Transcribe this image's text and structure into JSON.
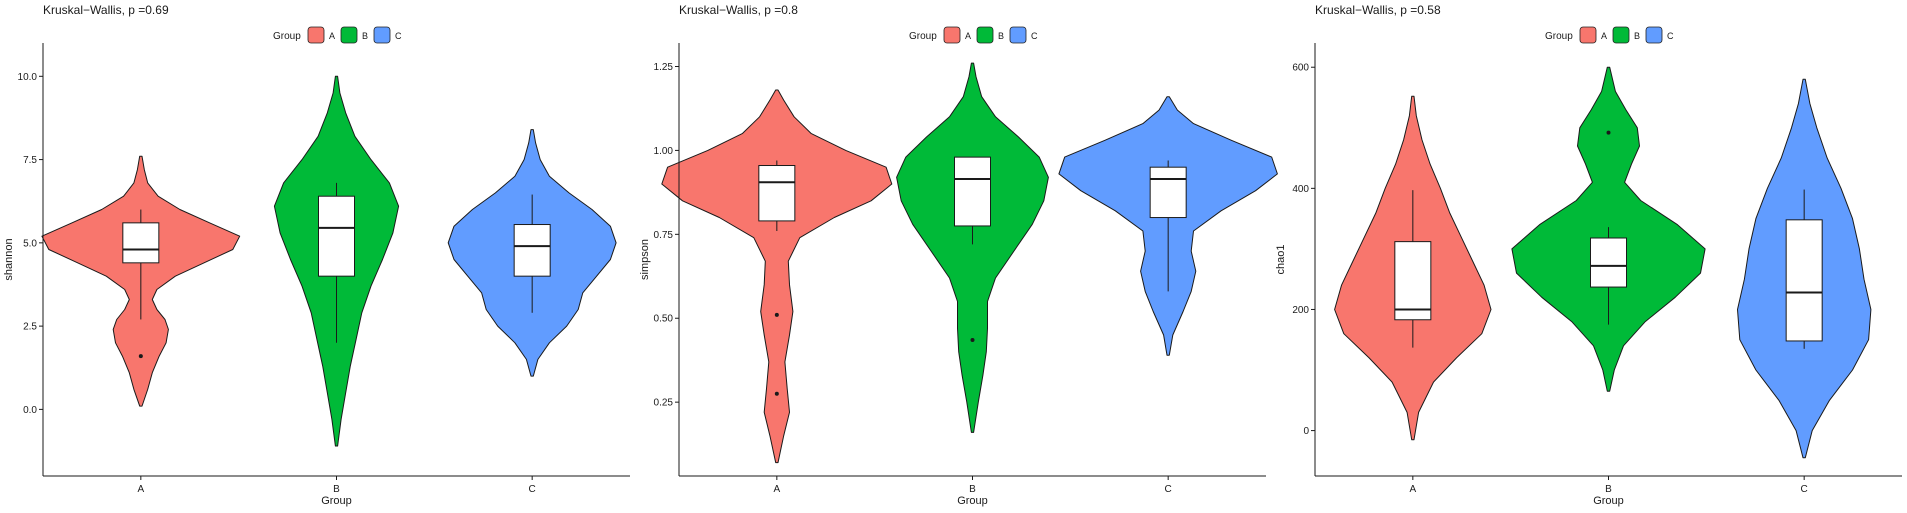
{
  "legend": {
    "title": "Group",
    "items": [
      {
        "label": "A",
        "color": "#F8766D"
      },
      {
        "label": "B",
        "color": "#00BA38"
      },
      {
        "label": "C",
        "color": "#619CFF"
      }
    ]
  },
  "chart_data": [
    {
      "type": "violin",
      "title": "Kruskal−Wallis, p =0.69",
      "xlabel": "Group",
      "ylabel": "shannon",
      "categories": [
        "A",
        "B",
        "C"
      ],
      "ylim": [
        -2.0,
        11.0
      ],
      "yticks": [
        0.0,
        2.5,
        5.0,
        7.5,
        10.0
      ],
      "ytick_labels": [
        "0.0",
        "2.5",
        "5.0",
        "7.5",
        "10.0"
      ],
      "series": [
        {
          "group": "A",
          "color": "#F8766D",
          "violin_range": [
            0.1,
            7.6
          ],
          "box": {
            "lower_whisker": 2.7,
            "q1": 4.4,
            "median": 4.8,
            "q3": 5.6,
            "upper_whisker": 6.0
          },
          "outliers": [
            1.6
          ],
          "density": [
            [
              0.1,
              0.01
            ],
            [
              0.6,
              0.06
            ],
            [
              1.1,
              0.1
            ],
            [
              1.6,
              0.16
            ],
            [
              2.0,
              0.22
            ],
            [
              2.4,
              0.24
            ],
            [
              2.7,
              0.21
            ],
            [
              3.0,
              0.14
            ],
            [
              3.3,
              0.1
            ],
            [
              3.6,
              0.14
            ],
            [
              4.0,
              0.3
            ],
            [
              4.4,
              0.55
            ],
            [
              4.8,
              0.8
            ],
            [
              5.2,
              0.86
            ],
            [
              5.6,
              0.6
            ],
            [
              6.0,
              0.34
            ],
            [
              6.4,
              0.15
            ],
            [
              6.8,
              0.06
            ],
            [
              7.2,
              0.03
            ],
            [
              7.6,
              0.01
            ]
          ]
        },
        {
          "group": "B",
          "color": "#00BA38",
          "violin_range": [
            -1.1,
            10.0
          ],
          "box": {
            "lower_whisker": 2.0,
            "q1": 4.0,
            "median": 5.45,
            "q3": 6.4,
            "upper_whisker": 6.8
          },
          "outliers": [],
          "density": [
            [
              -1.1,
              0.01
            ],
            [
              -0.3,
              0.04
            ],
            [
              0.5,
              0.08
            ],
            [
              1.3,
              0.12
            ],
            [
              2.1,
              0.17
            ],
            [
              2.9,
              0.22
            ],
            [
              3.7,
              0.3
            ],
            [
              4.5,
              0.4
            ],
            [
              5.3,
              0.49
            ],
            [
              6.1,
              0.54
            ],
            [
              6.8,
              0.46
            ],
            [
              7.5,
              0.3
            ],
            [
              8.2,
              0.16
            ],
            [
              8.9,
              0.08
            ],
            [
              9.5,
              0.03
            ],
            [
              10.0,
              0.01
            ]
          ]
        },
        {
          "group": "C",
          "color": "#619CFF",
          "violin_range": [
            1.0,
            8.4
          ],
          "box": {
            "lower_whisker": 2.9,
            "q1": 4.0,
            "median": 4.9,
            "q3": 5.55,
            "upper_whisker": 6.45
          },
          "outliers": [],
          "density": [
            [
              1.0,
              0.01
            ],
            [
              1.5,
              0.05
            ],
            [
              2.0,
              0.15
            ],
            [
              2.5,
              0.3
            ],
            [
              3.0,
              0.4
            ],
            [
              3.5,
              0.44
            ],
            [
              4.0,
              0.56
            ],
            [
              4.5,
              0.68
            ],
            [
              5.0,
              0.73
            ],
            [
              5.5,
              0.68
            ],
            [
              6.0,
              0.52
            ],
            [
              6.5,
              0.32
            ],
            [
              7.0,
              0.15
            ],
            [
              7.5,
              0.07
            ],
            [
              8.0,
              0.03
            ],
            [
              8.4,
              0.01
            ]
          ]
        }
      ]
    },
    {
      "type": "violin",
      "title": "Kruskal−Wallis, p =0.8",
      "xlabel": "Group",
      "ylabel": "simpson",
      "categories": [
        "A",
        "B",
        "C"
      ],
      "ylim": [
        0.03,
        1.32
      ],
      "yticks": [
        0.25,
        0.5,
        0.75,
        1.0,
        1.25
      ],
      "ytick_labels": [
        "0.25",
        "0.50",
        "0.75",
        "1.00",
        "1.25"
      ],
      "series": [
        {
          "group": "A",
          "color": "#F8766D",
          "violin_range": [
            0.07,
            1.18
          ],
          "box": {
            "lower_whisker": 0.76,
            "q1": 0.79,
            "median": 0.905,
            "q3": 0.955,
            "upper_whisker": 0.97
          },
          "outliers": [
            0.51,
            0.275
          ],
          "density": [
            [
              0.07,
              0.01
            ],
            [
              0.15,
              0.06
            ],
            [
              0.22,
              0.11
            ],
            [
              0.29,
              0.09
            ],
            [
              0.37,
              0.07
            ],
            [
              0.45,
              0.11
            ],
            [
              0.52,
              0.14
            ],
            [
              0.6,
              0.11
            ],
            [
              0.67,
              0.1
            ],
            [
              0.74,
              0.2
            ],
            [
              0.8,
              0.5
            ],
            [
              0.85,
              0.82
            ],
            [
              0.9,
              1.0
            ],
            [
              0.95,
              0.95
            ],
            [
              1.0,
              0.6
            ],
            [
              1.05,
              0.3
            ],
            [
              1.1,
              0.15
            ],
            [
              1.15,
              0.06
            ],
            [
              1.18,
              0.01
            ]
          ]
        },
        {
          "group": "B",
          "color": "#00BA38",
          "violin_range": [
            0.16,
            1.26
          ],
          "box": {
            "lower_whisker": 0.72,
            "q1": 0.775,
            "median": 0.915,
            "q3": 0.98,
            "upper_whisker": 0.98
          },
          "outliers": [
            0.435
          ],
          "density": [
            [
              0.16,
              0.01
            ],
            [
              0.25,
              0.05
            ],
            [
              0.33,
              0.09
            ],
            [
              0.4,
              0.12
            ],
            [
              0.47,
              0.13
            ],
            [
              0.55,
              0.13
            ],
            [
              0.62,
              0.2
            ],
            [
              0.7,
              0.36
            ],
            [
              0.78,
              0.52
            ],
            [
              0.85,
              0.62
            ],
            [
              0.92,
              0.66
            ],
            [
              0.98,
              0.58
            ],
            [
              1.04,
              0.4
            ],
            [
              1.1,
              0.2
            ],
            [
              1.16,
              0.08
            ],
            [
              1.22,
              0.03
            ],
            [
              1.26,
              0.01
            ]
          ]
        },
        {
          "group": "C",
          "color": "#619CFF",
          "violin_range": [
            0.39,
            1.16
          ],
          "box": {
            "lower_whisker": 0.58,
            "q1": 0.8,
            "median": 0.915,
            "q3": 0.95,
            "upper_whisker": 0.97
          },
          "outliers": [],
          "density": [
            [
              0.39,
              0.01
            ],
            [
              0.45,
              0.04
            ],
            [
              0.52,
              0.13
            ],
            [
              0.58,
              0.2
            ],
            [
              0.64,
              0.24
            ],
            [
              0.7,
              0.2
            ],
            [
              0.76,
              0.22
            ],
            [
              0.82,
              0.46
            ],
            [
              0.88,
              0.76
            ],
            [
              0.93,
              0.95
            ],
            [
              0.98,
              0.9
            ],
            [
              1.03,
              0.55
            ],
            [
              1.08,
              0.22
            ],
            [
              1.12,
              0.08
            ],
            [
              1.16,
              0.01
            ]
          ]
        }
      ]
    },
    {
      "type": "violin",
      "title": "Kruskal−Wallis, p =0.58",
      "xlabel": "Group",
      "ylabel": "chao1",
      "categories": [
        "A",
        "B",
        "C"
      ],
      "ylim": [
        -75,
        640
      ],
      "yticks": [
        0,
        200,
        400,
        600
      ],
      "ytick_labels": [
        "0",
        "200",
        "400",
        "600"
      ],
      "series": [
        {
          "group": "A",
          "color": "#F8766D",
          "violin_range": [
            -15,
            552
          ],
          "box": {
            "lower_whisker": 137,
            "q1": 183,
            "median": 200,
            "q3": 312,
            "upper_whisker": 397
          },
          "outliers": [],
          "density": [
            [
              -15,
              0.01
            ],
            [
              30,
              0.05
            ],
            [
              80,
              0.18
            ],
            [
              120,
              0.38
            ],
            [
              160,
              0.6
            ],
            [
              200,
              0.68
            ],
            [
              240,
              0.62
            ],
            [
              280,
              0.52
            ],
            [
              320,
              0.42
            ],
            [
              360,
              0.32
            ],
            [
              400,
              0.24
            ],
            [
              440,
              0.15
            ],
            [
              480,
              0.08
            ],
            [
              520,
              0.03
            ],
            [
              552,
              0.01
            ]
          ]
        },
        {
          "group": "B",
          "color": "#00BA38",
          "violin_range": [
            65,
            600
          ],
          "box": {
            "lower_whisker": 175,
            "q1": 237,
            "median": 272,
            "q3": 318,
            "upper_whisker": 336
          },
          "outliers": [
            492
          ],
          "density": [
            [
              65,
              0.01
            ],
            [
              100,
              0.05
            ],
            [
              140,
              0.13
            ],
            [
              180,
              0.32
            ],
            [
              220,
              0.58
            ],
            [
              260,
              0.8
            ],
            [
              300,
              0.84
            ],
            [
              340,
              0.6
            ],
            [
              380,
              0.28
            ],
            [
              410,
              0.14
            ],
            [
              440,
              0.2
            ],
            [
              470,
              0.27
            ],
            [
              500,
              0.25
            ],
            [
              530,
              0.15
            ],
            [
              560,
              0.06
            ],
            [
              600,
              0.01
            ]
          ]
        },
        {
          "group": "C",
          "color": "#619CFF",
          "violin_range": [
            -45,
            580
          ],
          "box": {
            "lower_whisker": 135,
            "q1": 148,
            "median": 228,
            "q3": 348,
            "upper_whisker": 398
          },
          "outliers": [],
          "density": [
            [
              -45,
              0.01
            ],
            [
              0,
              0.07
            ],
            [
              50,
              0.22
            ],
            [
              100,
              0.42
            ],
            [
              150,
              0.56
            ],
            [
              200,
              0.58
            ],
            [
              250,
              0.52
            ],
            [
              300,
              0.48
            ],
            [
              350,
              0.42
            ],
            [
              400,
              0.32
            ],
            [
              450,
              0.2
            ],
            [
              500,
              0.11
            ],
            [
              540,
              0.05
            ],
            [
              580,
              0.01
            ]
          ]
        }
      ]
    }
  ]
}
